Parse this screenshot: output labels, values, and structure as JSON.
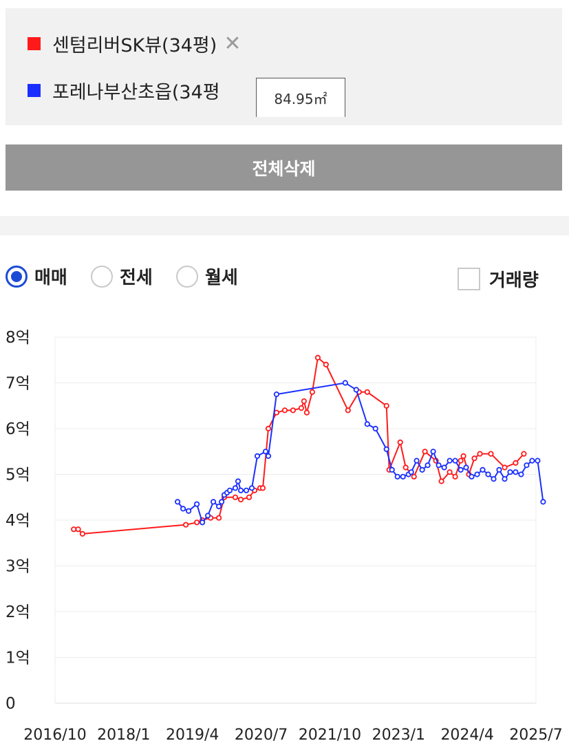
{
  "legend": {
    "items": [
      {
        "label": "센텀리버SK뷰(34평)",
        "color": "#ff1a1a"
      },
      {
        "label": "포레나부산초읍(34평",
        "color": "#1a2fff"
      }
    ],
    "remove_icon": "close-icon",
    "tooltip": "84.95㎡"
  },
  "delete_all_label": "전체삭제",
  "options": {
    "radios": [
      {
        "label": "매매",
        "selected": true
      },
      {
        "label": "전세",
        "selected": false
      },
      {
        "label": "월세",
        "selected": false
      }
    ],
    "volume_label": "거래량",
    "volume_checked": false
  },
  "chart_data": {
    "type": "line",
    "y_ticks": [
      "0",
      "1억",
      "2억",
      "3억",
      "4억",
      "5억",
      "6억",
      "7억",
      "8억"
    ],
    "ylim": [
      0,
      8
    ],
    "y_unit": "억",
    "x_ticks": [
      "2016/10",
      "2018/1",
      "2019/4",
      "2020/7",
      "2021/10",
      "2023/1",
      "2024/4",
      "2025/7"
    ],
    "x_tick_values": [
      2016.75,
      2018.0,
      2019.25,
      2020.5,
      2021.75,
      2023.0,
      2024.25,
      2025.5
    ],
    "xlim": [
      2016.75,
      2025.5
    ],
    "grid": true,
    "series": [
      {
        "name": "센텀리버SK뷰(34평)",
        "color": "#ff1a1a",
        "points": [
          [
            2017.09,
            3.8
          ],
          [
            2017.17,
            3.8
          ],
          [
            2017.25,
            3.7
          ],
          [
            2019.13,
            3.9
          ],
          [
            2019.33,
            3.95
          ],
          [
            2019.43,
            4.0
          ],
          [
            2019.58,
            4.05
          ],
          [
            2019.73,
            4.05
          ],
          [
            2019.83,
            4.5
          ],
          [
            2020.03,
            4.5
          ],
          [
            2020.13,
            4.45
          ],
          [
            2020.28,
            4.5
          ],
          [
            2020.38,
            4.65
          ],
          [
            2020.48,
            4.7
          ],
          [
            2020.53,
            4.7
          ],
          [
            2020.63,
            6.0
          ],
          [
            2020.78,
            6.35
          ],
          [
            2020.93,
            6.4
          ],
          [
            2021.08,
            6.4
          ],
          [
            2021.23,
            6.45
          ],
          [
            2021.28,
            6.6
          ],
          [
            2021.33,
            6.35
          ],
          [
            2021.43,
            6.8
          ],
          [
            2021.53,
            7.55
          ],
          [
            2021.68,
            7.4
          ],
          [
            2022.08,
            6.4
          ],
          [
            2022.28,
            6.8
          ],
          [
            2022.43,
            6.8
          ],
          [
            2022.78,
            6.5
          ],
          [
            2022.83,
            5.1
          ],
          [
            2023.03,
            5.7
          ],
          [
            2023.13,
            5.15
          ],
          [
            2023.28,
            4.95
          ],
          [
            2023.48,
            5.5
          ],
          [
            2023.68,
            5.3
          ],
          [
            2023.78,
            4.85
          ],
          [
            2023.93,
            5.05
          ],
          [
            2024.03,
            4.95
          ],
          [
            2024.13,
            5.3
          ],
          [
            2024.18,
            5.4
          ],
          [
            2024.28,
            5.0
          ],
          [
            2024.38,
            5.35
          ],
          [
            2024.48,
            5.45
          ],
          [
            2024.68,
            5.45
          ],
          [
            2024.93,
            5.15
          ],
          [
            2025.13,
            5.25
          ],
          [
            2025.28,
            5.45
          ]
        ]
      },
      {
        "name": "포레나부산초읍(34평",
        "color": "#1a2fff",
        "points": [
          [
            2018.98,
            4.4
          ],
          [
            2019.08,
            4.25
          ],
          [
            2019.18,
            4.2
          ],
          [
            2019.33,
            4.35
          ],
          [
            2019.43,
            3.95
          ],
          [
            2019.53,
            4.1
          ],
          [
            2019.63,
            4.4
          ],
          [
            2019.73,
            4.3
          ],
          [
            2019.78,
            4.4
          ],
          [
            2019.83,
            4.55
          ],
          [
            2019.88,
            4.6
          ],
          [
            2019.93,
            4.65
          ],
          [
            2020.03,
            4.7
          ],
          [
            2020.08,
            4.85
          ],
          [
            2020.13,
            4.65
          ],
          [
            2020.23,
            4.65
          ],
          [
            2020.33,
            4.7
          ],
          [
            2020.43,
            5.4
          ],
          [
            2020.58,
            5.5
          ],
          [
            2020.63,
            5.4
          ],
          [
            2020.78,
            6.75
          ],
          [
            2022.03,
            7.0
          ],
          [
            2022.23,
            6.85
          ],
          [
            2022.43,
            6.1
          ],
          [
            2022.58,
            6.0
          ],
          [
            2022.78,
            5.55
          ],
          [
            2022.88,
            5.1
          ],
          [
            2022.98,
            4.95
          ],
          [
            2023.08,
            4.95
          ],
          [
            2023.18,
            5.0
          ],
          [
            2023.23,
            5.05
          ],
          [
            2023.33,
            5.3
          ],
          [
            2023.43,
            5.1
          ],
          [
            2023.53,
            5.2
          ],
          [
            2023.63,
            5.5
          ],
          [
            2023.73,
            5.2
          ],
          [
            2023.83,
            5.15
          ],
          [
            2023.93,
            5.3
          ],
          [
            2024.03,
            5.3
          ],
          [
            2024.13,
            5.1
          ],
          [
            2024.23,
            5.15
          ],
          [
            2024.33,
            4.95
          ],
          [
            2024.43,
            5.0
          ],
          [
            2024.53,
            5.1
          ],
          [
            2024.63,
            5.0
          ],
          [
            2024.73,
            4.9
          ],
          [
            2024.83,
            5.1
          ],
          [
            2024.93,
            4.9
          ],
          [
            2025.03,
            5.05
          ],
          [
            2025.13,
            5.05
          ],
          [
            2025.23,
            5.0
          ],
          [
            2025.33,
            5.2
          ],
          [
            2025.43,
            5.3
          ],
          [
            2025.53,
            5.3
          ],
          [
            2025.63,
            4.4
          ]
        ]
      }
    ]
  }
}
